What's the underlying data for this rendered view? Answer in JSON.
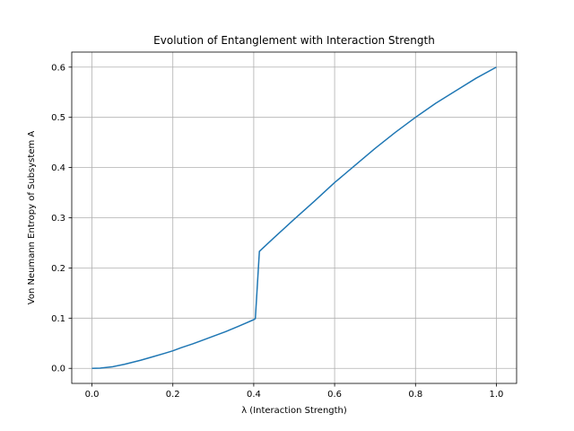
{
  "chart_data": {
    "type": "line",
    "title": "Evolution of Entanglement with Interaction Strength",
    "xlabel": "λ (Interaction Strength)",
    "ylabel": "Von Neumann Entropy of Subsystem A",
    "xlim": [
      -0.05,
      1.05
    ],
    "ylim": [
      -0.03,
      0.63
    ],
    "xticks": [
      0.0,
      0.2,
      0.4,
      0.6,
      0.8,
      1.0
    ],
    "yticks": [
      0.0,
      0.1,
      0.2,
      0.3,
      0.4,
      0.5,
      0.6
    ],
    "grid": true,
    "series": [
      {
        "color": "#1f77b4",
        "x": [
          0.0,
          0.02,
          0.05,
          0.08,
          0.1,
          0.12,
          0.15,
          0.18,
          0.2,
          0.22,
          0.25,
          0.28,
          0.3,
          0.33,
          0.36,
          0.38,
          0.4,
          0.404,
          0.414,
          0.45,
          0.5,
          0.55,
          0.6,
          0.65,
          0.7,
          0.75,
          0.8,
          0.85,
          0.9,
          0.95,
          1.0
        ],
        "y": [
          0.0,
          0.0005,
          0.003,
          0.008,
          0.012,
          0.016,
          0.023,
          0.03,
          0.035,
          0.041,
          0.049,
          0.058,
          0.064,
          0.073,
          0.083,
          0.09,
          0.097,
          0.099,
          0.233,
          0.26,
          0.297,
          0.333,
          0.37,
          0.404,
          0.438,
          0.47,
          0.5,
          0.528,
          0.553,
          0.578,
          0.6
        ]
      }
    ]
  }
}
